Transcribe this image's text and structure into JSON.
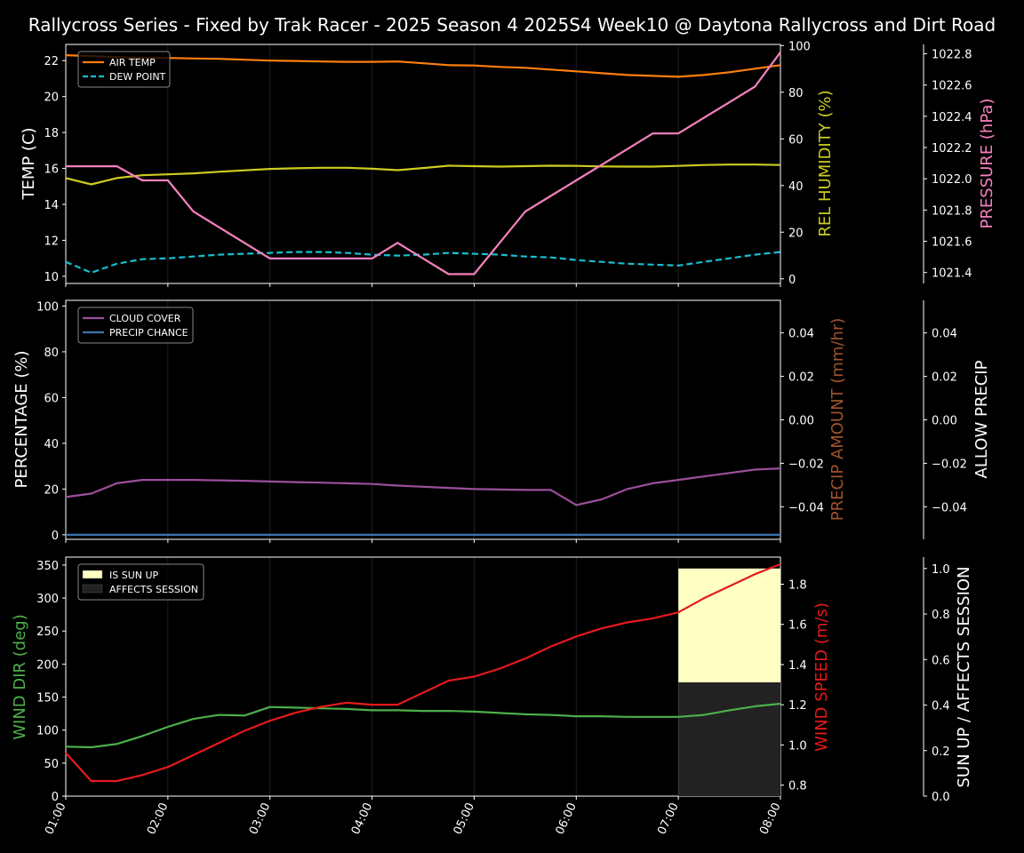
{
  "title": "Rallycross Series - Fixed by Trak Racer - 2025 Season 4 2025S4 Week10 @ Daytona Rallycross and Dirt Road",
  "x_tick_labels": [
    "01:00",
    "02:00",
    "03:00",
    "04:00",
    "05:00",
    "06:00",
    "07:00",
    "08:00"
  ],
  "colors": {
    "air_temp": "#ff7f0e",
    "dew_point": "#17becf",
    "humidity": "#cccc22",
    "pressure": "#f781bf",
    "cloud": "#9c4f9c",
    "precip_chance": "#3b75af",
    "precip_amount": "#a0522d",
    "wind_dir": "#4daf4a",
    "wind_speed": "#e41a1c",
    "sun_up": "#ffffc4",
    "affects": "#222222"
  },
  "chart_data": [
    {
      "type": "line",
      "name": "temperature-panel",
      "x": [
        1.0,
        1.25,
        1.5,
        1.75,
        2.0,
        2.25,
        2.5,
        2.75,
        3.0,
        3.25,
        3.5,
        3.75,
        4.0,
        4.25,
        4.5,
        4.75,
        5.0,
        5.25,
        5.5,
        5.75,
        6.0,
        6.25,
        6.5,
        6.75,
        7.0,
        7.25,
        7.5,
        7.75,
        8.0
      ],
      "ylabel": "TEMP (C)",
      "ylabel2": "REL HUMIDITY (%)",
      "ylabel3": "PRESSURE (hPa)",
      "ylim": [
        9.6,
        22.9
      ],
      "ylim2": [
        -2,
        100.5
      ],
      "ylim3": [
        1021.33,
        1022.86
      ],
      "yticks": [
        "10",
        "12",
        "14",
        "16",
        "18",
        "20",
        "22"
      ],
      "yticks2": [
        "0",
        "20",
        "40",
        "60",
        "80",
        "100"
      ],
      "yticks3": [
        "1021.4",
        "1021.6",
        "1021.8",
        "1022.0",
        "1022.2",
        "1022.4",
        "1022.6",
        "1022.8"
      ],
      "legend_position": "top-left",
      "series": [
        {
          "name": "AIR TEMP",
          "axis": "left",
          "style": "solid",
          "values": [
            22.3,
            22.25,
            22.2,
            22.15,
            22.15,
            22.12,
            22.1,
            22.05,
            22.0,
            21.98,
            21.95,
            21.93,
            21.93,
            21.95,
            21.85,
            21.75,
            21.73,
            21.65,
            21.6,
            21.5,
            21.4,
            21.3,
            21.2,
            21.15,
            21.1,
            21.2,
            21.35,
            21.55,
            21.75
          ]
        },
        {
          "name": "DEW POINT",
          "axis": "left",
          "style": "dashed",
          "values": [
            10.8,
            10.2,
            10.7,
            10.95,
            11.0,
            11.1,
            11.2,
            11.25,
            11.3,
            11.35,
            11.35,
            11.3,
            11.2,
            11.15,
            11.2,
            11.3,
            11.25,
            11.2,
            11.1,
            11.05,
            10.9,
            10.8,
            10.7,
            10.65,
            10.6,
            10.8,
            11.0,
            11.2,
            11.35
          ]
        },
        {
          "name": "REL HUMIDITY",
          "axis": "right",
          "values": [
            43.2,
            40.5,
            43.2,
            44.4,
            44.8,
            45.2,
            45.9,
            46.5,
            47.1,
            47.4,
            47.6,
            47.6,
            47.2,
            46.6,
            47.5,
            48.5,
            48.3,
            48.1,
            48.3,
            48.5,
            48.4,
            48.2,
            48.1,
            48.1,
            48.4,
            48.8,
            49.0,
            49.0,
            48.8
          ]
        },
        {
          "name": "PRESSURE",
          "axis": "right2",
          "values": [
            1022.08,
            1022.08,
            1022.08,
            1021.99,
            1021.99,
            1021.79,
            1021.69,
            1021.59,
            1021.49,
            1021.49,
            1021.49,
            1021.49,
            1021.49,
            1021.59,
            1021.49,
            1021.39,
            1021.39,
            1021.59,
            1021.79,
            1021.89,
            1021.99,
            1022.09,
            1022.19,
            1022.29,
            1022.29,
            1022.39,
            1022.49,
            1022.59,
            1022.81
          ]
        }
      ]
    },
    {
      "type": "line",
      "name": "precip-panel",
      "ylabel": "PERCENTAGE (%)",
      "ylabel2": "PRECIP AMOUNT (mm/hr)",
      "ylabel3": "ALLOW PRECIP",
      "ylim": [
        -2,
        102.5
      ],
      "ylim2": [
        -0.055,
        0.055
      ],
      "ylim3": [
        -0.055,
        0.055
      ],
      "yticks": [
        "0",
        "20",
        "40",
        "60",
        "80",
        "100"
      ],
      "yticks2": [
        "−0.04",
        "−0.02",
        "0.00",
        "0.02",
        "0.04"
      ],
      "yticks3": [
        "−0.04",
        "−0.02",
        "0.00",
        "0.02",
        "0.04"
      ],
      "legend_position": "top-left",
      "series": [
        {
          "name": "CLOUD COVER",
          "axis": "left",
          "values": [
            16.5,
            18.0,
            22.5,
            24.0,
            24.0,
            24.0,
            23.8,
            23.6,
            23.3,
            23.0,
            22.8,
            22.5,
            22.2,
            21.5,
            21.0,
            20.5,
            20.0,
            19.8,
            19.6,
            19.6,
            13.0,
            15.5,
            20.0,
            22.5,
            24.0,
            25.5,
            27.0,
            28.5,
            29.0
          ]
        },
        {
          "name": "PRECIP CHANCE",
          "axis": "left",
          "values": [
            0,
            0,
            0,
            0,
            0,
            0,
            0,
            0,
            0,
            0,
            0,
            0,
            0,
            0,
            0,
            0,
            0,
            0,
            0,
            0,
            0,
            0,
            0,
            0,
            0,
            0,
            0,
            0,
            0
          ]
        }
      ]
    },
    {
      "type": "line",
      "name": "wind-panel",
      "ylabel": "WIND DIR (deg)",
      "ylabel2": "WIND SPEED (m/s)",
      "ylabel3": "SUN UP / AFFECTS SESSION",
      "ylim": [
        0,
        362
      ],
      "ylim2": [
        0.745,
        1.935
      ],
      "ylim3": [
        0,
        1.05
      ],
      "yticks": [
        "0",
        "50",
        "100",
        "150",
        "200",
        "250",
        "300",
        "350"
      ],
      "yticks2": [
        "0.8",
        "1.0",
        "1.2",
        "1.4",
        "1.6",
        "1.8"
      ],
      "yticks3": [
        "0.0",
        "0.2",
        "0.4",
        "0.6",
        "0.8",
        "1.0"
      ],
      "legend_position": "top-left",
      "legend": [
        "IS SUN UP",
        "AFFECTS SESSION"
      ],
      "sun_up": {
        "x_start": 7.0,
        "x_end": 8.0,
        "value": 1.0
      },
      "affects_session": {
        "x_start": 7.0,
        "x_end": 8.0,
        "value": 0.5
      },
      "series": [
        {
          "name": "WIND DIR",
          "axis": "left",
          "values": [
            75,
            74,
            79,
            91,
            105,
            117,
            123,
            122,
            135,
            134,
            133,
            132,
            130,
            130,
            129,
            129,
            128,
            126,
            124,
            123,
            121,
            121,
            120,
            120,
            120,
            123,
            130,
            136,
            140
          ]
        },
        {
          "name": "WIND SPEED",
          "axis": "right",
          "values": [
            0.96,
            0.82,
            0.82,
            0.85,
            0.89,
            0.95,
            1.01,
            1.07,
            1.12,
            1.16,
            1.19,
            1.21,
            1.2,
            1.2,
            1.26,
            1.32,
            1.34,
            1.38,
            1.43,
            1.49,
            1.54,
            1.58,
            1.61,
            1.63,
            1.66,
            1.73,
            1.79,
            1.85,
            1.9
          ]
        }
      ]
    }
  ]
}
